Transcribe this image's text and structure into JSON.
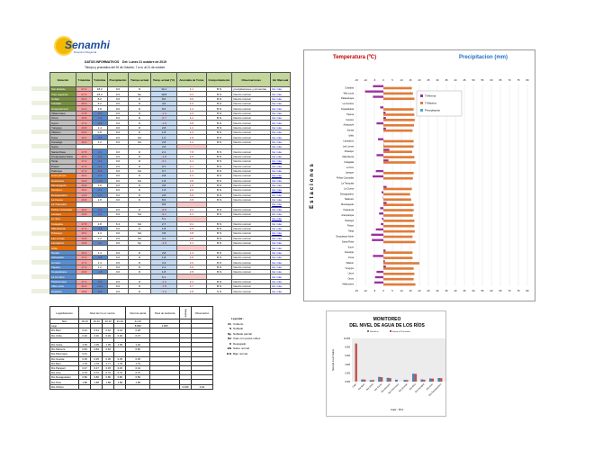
{
  "header": {
    "logo_text": "Senamhi",
    "logo_sub": "Dirección Regional",
    "title": "DATOS INFORMATIVOS",
    "date": "Del: Lunes 21 octubre de 2019",
    "subtitle": "Tiempo y pronóstico del 20 de Octubre, 7 a.m. al 21 de octubre"
  },
  "colors": {
    "green": "#77933c",
    "gray": "#bfbfbf",
    "orange": "#e46c0a",
    "blue": "#558ed5",
    "tmax": "#e07b39",
    "tmin": "#9b30a0",
    "pp": "#4bacc6"
  },
  "main_table": {
    "headers": [
      "Estación",
      "T.máxima",
      "T.mínima",
      "Precipitación",
      "Tiempo actual",
      "Temp. actual (°C)",
      "Anomalía de T.máx",
      "Comportamiento",
      "Observaciones",
      "Ver Mensual"
    ],
    "rows": [
      [
        "San Estado",
        "green",
        "27.2",
        "18.2",
        "0.0",
        "N",
        "14.1",
        "1.1",
        "B N",
        "precipitaciones y tormentas",
        "Ver más"
      ],
      [
        "Tres Lagunas",
        "green",
        "27.2",
        "18.2",
        "0.0",
        "Np",
        "19.8",
        "0.3",
        "B N",
        "Dentro normal",
        "Ver más"
      ],
      [
        "Cobija",
        "green",
        "20.4",
        "8.2",
        "0.0",
        "D",
        "8.0",
        "0.0",
        "B N",
        "Dentro normal",
        "Ver más"
      ],
      [
        "Trinidad",
        "green",
        "25.0",
        "5.2",
        "0.0",
        "D",
        "4.0",
        "4.0",
        "B N",
        "Dentro normal",
        "Ver más"
      ],
      [
        "Guayaramerín",
        "green",
        "12.2",
        "3.8",
        "0.0",
        "D",
        "8.0",
        "1.2",
        "B N",
        "Dentro normal",
        "Ver más"
      ],
      [
        "Villamontes",
        "gray",
        "17.8",
        "-5.0",
        "0.0",
        "D",
        "-1.4",
        "2.0",
        "B N",
        "Dentro normal",
        "Ver más"
      ],
      [
        "Oruro",
        "gray",
        "16.8",
        "-4.6",
        "0.0",
        "D",
        "-0.7",
        "4.2",
        "B N",
        "Dentro normal",
        "Ver más"
      ],
      [
        "Uyuni",
        "gray",
        "17.2",
        "-3.8",
        "0.0",
        "D",
        "-1.8",
        "0.8",
        "B N",
        "Dentro normal",
        "Ver más"
      ],
      [
        "Yunguyo",
        "gray",
        "16.8",
        "1.4",
        "0.0",
        "D",
        "2.8",
        "1.2",
        "B N",
        "Dentro normal",
        "Ver más"
      ],
      [
        "Villazón",
        "gray",
        "20.0",
        "0.8",
        "0.0",
        "D",
        "1.8",
        "1.0",
        "B N",
        "Dentro normal",
        "Ver más"
      ],
      [
        "Puna",
        "gray",
        "16.2",
        "-5.8",
        "0.0",
        "Nd",
        "1.0",
        "1.8",
        "B N",
        "Dentro normal",
        "Ver más"
      ],
      [
        "Camargo",
        "gray",
        "16.2",
        "1.2",
        "0.0",
        "Nd",
        "2.8",
        "1.2",
        "B N",
        "Dentro normal",
        "Ver más"
      ],
      [
        "Sucre",
        "gray",
        "",
        "",
        "",
        "",
        "2.8",
        "",
        "",
        "",
        "Ver más"
      ],
      [
        "Santa Rosa",
        "gray",
        "17.8",
        "-6.4",
        "0.0",
        "D",
        "2.1",
        "7.8",
        "B N",
        "Dentro normal",
        "Ver más"
      ],
      [
        "Chuquisaca Norte",
        "gray",
        "16.2",
        "-6.8",
        "0.0",
        "D",
        "-1.8",
        "4.8",
        "B N",
        "Dentro normal",
        "Ver más"
      ],
      [
        "Tarija",
        "gray",
        "17.4",
        "-4.2",
        "0.0",
        "D",
        "-0.1",
        "4.1",
        "B N",
        "Dentro normal",
        "Ver más"
      ],
      [
        "Potosí",
        "gray",
        "17.2",
        "-1.4",
        "0.0",
        "D",
        "0.7",
        "3.1",
        "B N",
        "Dentro normal",
        "Ver más"
      ],
      [
        "Padcaya",
        "gray",
        "17.2",
        "-0.8",
        "0.0",
        "Nd",
        "0.7",
        "1.2",
        "B N",
        "Dentro normal",
        "Ver más"
      ],
      [
        "Arampampa",
        "orange",
        "16.4",
        "-2.4",
        "0.0",
        "D",
        "2.8",
        "4.3",
        "B N",
        "Dentro normal",
        "Ver más"
      ],
      [
        "Huacareta",
        "orange",
        "16.8",
        "-1.8",
        "0.0",
        "Nd",
        "1.8",
        "3.8",
        "B N",
        "Dentro normal",
        "Ver más"
      ],
      [
        "Monteagudo",
        "orange",
        "16.8",
        "1.8",
        "0.0",
        "D",
        "3.8",
        "1.8",
        "B N",
        "Dentro normal",
        "Ver más"
      ],
      [
        "Tarabuco",
        "orange",
        "15.4",
        "-0.2",
        "0.0",
        "D",
        "1.8",
        "2.0",
        "B N",
        "Dentro normal",
        "Ver más"
      ],
      [
        "Desaguadero",
        "orange",
        "14.8",
        "-1.0",
        "0.0",
        "D",
        "2.8",
        "3.8",
        "B N",
        "Dentro normal",
        "Ver más"
      ],
      [
        "La Cueva",
        "orange",
        "15.8",
        "1.8",
        "0.0",
        "D",
        "8.0",
        "3.8",
        "B N",
        "Dentro normal",
        "Ver más"
      ],
      [
        "La Tranquita",
        "orange",
        "",
        "",
        "",
        "",
        "8.8",
        "",
        "",
        "",
        "Ver más"
      ],
      [
        "Peñas Coloradas",
        "orange",
        "16.4",
        "-6.0",
        "0.0",
        "D",
        "-8.8",
        "3.2",
        "B N",
        "Dentro normal",
        "Ver más"
      ],
      [
        "Laraque",
        "orange",
        "16.8",
        "-4.2",
        "0.0",
        "Nd",
        "-0.1",
        "4.1",
        "B N",
        "Dentro normal",
        "Ver más"
      ],
      [
        "Lo Toro",
        "orange",
        "",
        "",
        "",
        "",
        "5.1",
        "",
        "",
        "",
        "Ver más"
      ],
      [
        "Cotagaita",
        "orange",
        "17.8",
        "2.8",
        "6.4",
        "Nd",
        "2.7",
        "0.1",
        "B N",
        "Dentro normal",
        "Ver más"
      ],
      [
        "Villa Abecia",
        "orange",
        "17.2",
        "-3.8",
        "0.0",
        "D",
        "1.8",
        "4.8",
        "B N",
        "Dentro normal",
        "Ver más"
      ],
      [
        "Pulacayo",
        "orange",
        "16.0",
        "3.3",
        "0.0",
        "Nd",
        "3.8",
        "3.8",
        "B N",
        "Dentro normal",
        "Ver más"
      ],
      [
        "Las Lomas",
        "orange",
        "16.8",
        "0.2",
        "0.0",
        "Nd",
        "4.1",
        "3.8",
        "B N",
        "Dentro normal",
        "Ver más"
      ],
      [
        "Lampazos",
        "orange",
        "16.8",
        "-3.0",
        "0.0",
        "Np",
        "-3.8",
        "2.1",
        "B N",
        "Dentro normal",
        "Ver más"
      ],
      [
        "Ichilo",
        "orange",
        "",
        "",
        "",
        "",
        "",
        "",
        "",
        "",
        "Ver más"
      ],
      [
        "Sorata",
        "blue",
        "16.2",
        "1.4",
        "0.0",
        "D",
        "2.8",
        "1.4",
        "B N",
        "Dentro normal",
        "Ver más"
      ],
      [
        "Achacachi",
        "blue",
        "17.0",
        "-3.8",
        "0.0",
        "D",
        "1.8",
        "2.8",
        "B N",
        "Dentro normal",
        "Ver más"
      ],
      [
        "Coroico",
        "blue",
        "17.4",
        "1.4",
        "0.0",
        "D",
        "3.4",
        "2.0",
        "B N",
        "Dentro normal",
        "Ver más"
      ],
      [
        "Tiquina",
        "blue",
        "17.2",
        "1.2",
        "0.0",
        "D",
        "2.1",
        "3.8",
        "B N",
        "Dentro normal",
        "Ver más"
      ],
      [
        "Copacabana",
        "blue",
        "16.8",
        "-1.8",
        "0.0",
        "D",
        "1.8",
        "2.8",
        "B N",
        "Dentro normal",
        "Ver más"
      ],
      [
        "La Cumbre",
        "blue",
        "",
        "",
        "",
        "",
        "5.1",
        "",
        "",
        "",
        "Ver más"
      ],
      [
        "Patacamaya",
        "blue",
        "17.2",
        "-5.8",
        "0.0",
        "D",
        "-1.3",
        "2.2",
        "B N",
        "Dentro normal",
        "Ver más"
      ],
      [
        "Villa Lucía",
        "blue",
        "16.4",
        "-10.2",
        "0.0",
        "D",
        "-7.8",
        "2.7",
        "B N",
        "Dentro normal",
        "Ver más"
      ],
      [
        "Charaña",
        "blue",
        "15.8",
        "-5.8",
        "0.0",
        "D",
        "-7.2",
        "4.8",
        "S N",
        "Dentro normal",
        "Ver más"
      ]
    ]
  },
  "chart": {
    "title_temp": "Temperatura (ºC)",
    "title_pp": "Precipitacion (mm)",
    "ylabel": "Estaciones",
    "legend": [
      "T.Mínima",
      "T.Máxima",
      "Precipitación"
    ],
    "ticks": [
      -15,
      -10,
      -5,
      0,
      5,
      10,
      15,
      20,
      25,
      30,
      35,
      40,
      45,
      50,
      55,
      60,
      65,
      70,
      75,
      80
    ]
  },
  "legend_box": {
    "title": "Leyenda :",
    "items": [
      [
        "Cb",
        "Cubierto"
      ],
      [
        "N",
        "Nublado"
      ],
      [
        "Np",
        "Nublado parcial"
      ],
      [
        "Nd",
        "Cielo con pocas nubes"
      ],
      [
        "D",
        "Despejado"
      ],
      [
        "BN",
        "Sobre normal"
      ],
      [
        "B.N",
        "Bajo normal"
      ]
    ]
  },
  "river_table": {
    "h_lugar": "Lugar/Estación",
    "h_nivel": "Nivel del río en metros",
    "h_alerta": "Nivel de alerta",
    "h_desborde": "Nivel de desborde",
    "h_var": "Variación",
    "h_obs": "Observación",
    "sub": [
      "Sitio",
      "18-10",
      "19-10",
      "20-10",
      "21-10",
      "21-10"
    ],
    "rows": [
      [
        "Lago",
        "",
        "",
        "",
        "",
        "8.830",
        "1.660",
        "",
        ""
      ],
      [
        "Río Beni",
        "0.44",
        "0.44",
        "0.44",
        "0.44",
        "0.48",
        "",
        "",
        ""
      ],
      [
        "Río Ichilo",
        "0.30",
        "0.30",
        "0.30",
        "0.30",
        "0.37",
        "",
        "",
        ""
      ],
      [
        "",
        "",
        "",
        "",
        "",
        "",
        "",
        "",
        ""
      ],
      [
        "Río Caine",
        "1.05",
        "1.05",
        "1.05",
        "1.05",
        "1.02",
        "",
        "",
        ""
      ],
      [
        "Río Mamoré",
        "0.84",
        "0.84",
        "0.84",
        "",
        "0.82",
        "",
        "",
        ""
      ],
      [
        "Río Pilcomayo",
        "0.41",
        "",
        "",
        "",
        "",
        "",
        "",
        ""
      ],
      [
        "Río Grande",
        "0.35",
        "0.35",
        "0.35",
        "0.35",
        "0.35",
        "",
        "",
        ""
      ],
      [
        "Río Beni",
        "1.78",
        "1.78",
        "1.77",
        "1.78",
        "1.79",
        "",
        "",
        ""
      ],
      [
        "Río Parapetí",
        "0.47",
        "0.47",
        "0.45",
        "0.45",
        "0.44",
        "",
        "",
        ""
      ],
      [
        "Río Acre",
        "0.70",
        "0.70",
        "0.70",
        "0.70",
        "0.70",
        "",
        "",
        ""
      ],
      [
        "Río Desaguadero",
        "0.80",
        "0.80",
        "0.80",
        "0.80",
        "0.80",
        "",
        "",
        ""
      ],
      [
        "Río Piraí",
        "1.88",
        "1.88",
        "1.88",
        "1.88",
        "1.88",
        "",
        "",
        ""
      ],
      [
        "Río Orthon",
        "",
        "",
        "",
        "",
        "",
        "",
        "0.030",
        "0.02"
      ]
    ]
  },
  "river_chart": {
    "title1": "MONITOREO",
    "title2": "DEL NIVEL DE AGUA DE LOS RÍOS",
    "ylabel": "Nivel del río en metros",
    "xlabel": "Lugar - Ríos",
    "series": [
      "Nivel del río",
      "Reporte al 21 de octubre"
    ],
    "ylim": [
      0,
      10
    ],
    "yticks": [
      "0.000",
      "2.000",
      "4.000",
      "6.000",
      "8.000",
      "10.000"
    ],
    "categories": [
      "Lago",
      "Río Beni",
      "Río Ichilo",
      "Río Caine",
      "Río Mamoré",
      "Río Pilcomayo",
      "Río Grande",
      "Río Beni",
      "Río Parapetí",
      "Río Acre",
      "Río Desaguadero"
    ],
    "values": [
      [
        0,
        0.44,
        0.3,
        1.05,
        0.84,
        0.41,
        0.35,
        1.78,
        0.47,
        0.7,
        0.8
      ],
      [
        8.83,
        0.48,
        0.37,
        1.02,
        0.82,
        0,
        0.35,
        1.79,
        0.44,
        0.7,
        0.8
      ]
    ]
  }
}
